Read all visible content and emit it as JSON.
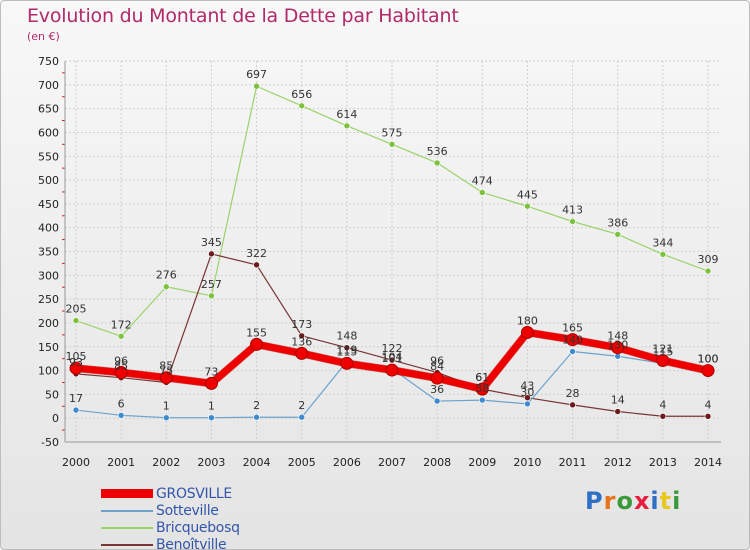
{
  "header": {
    "title": "Evolution du Montant de la Dette par Habitant",
    "subtitle": "(en €)"
  },
  "logo": {
    "text": "Proxiti",
    "letter_colors": [
      "#2f6fc4",
      "#e8731c",
      "#3a9a3a",
      "#e81c3c",
      "#2f6fc4",
      "#e8c81c",
      "#3a9a3a"
    ]
  },
  "chart_data": {
    "type": "line",
    "title": "Evolution du Montant de la Dette par Habitant",
    "subtitle": "(en €)",
    "xlabel": "",
    "ylabel": "",
    "x": [
      "2000",
      "2001",
      "2002",
      "2003",
      "2004",
      "2005",
      "2006",
      "2007",
      "2008",
      "2009",
      "2010",
      "2011",
      "2012",
      "2013",
      "2014"
    ],
    "ylim": [
      -50,
      750
    ],
    "yticks": [
      "-50",
      "0",
      "50",
      "100",
      "150",
      "200",
      "250",
      "300",
      "350",
      "400",
      "450",
      "500",
      "550",
      "600",
      "650",
      "700",
      "750"
    ],
    "grid": true,
    "legend_position": "bottom-left",
    "series": [
      {
        "name": "Bricquebosq",
        "color": "#99d36a",
        "marker": "#7cc23d",
        "width": 1.2,
        "values": [
          205,
          172,
          276,
          257,
          697,
          656,
          614,
          575,
          536,
          474,
          445,
          413,
          386,
          344,
          309
        ],
        "labels": [
          "205",
          "172",
          "276",
          "257",
          "697",
          "656",
          "614",
          "575",
          "536",
          "474",
          "445",
          "413",
          "386",
          "344",
          "309"
        ]
      },
      {
        "name": "Benoîtville",
        "color": "#7a3535",
        "marker": "#6a1a1a",
        "width": 1.2,
        "values": [
          93,
          85,
          75,
          345,
          322,
          173,
          148,
          122,
          96,
          61,
          43,
          28,
          14,
          4,
          4
        ],
        "labels": [
          "93",
          "85",
          "75",
          "345",
          "322",
          "173",
          "148",
          "122",
          "96",
          "61",
          "43",
          "28",
          "14",
          "4",
          "4"
        ]
      },
      {
        "name": "Sotteville",
        "color": "#6ba3cf",
        "marker": "#3d8ad0",
        "width": 1.2,
        "values": [
          17,
          6,
          1,
          1,
          2,
          2,
          119,
          104,
          36,
          38,
          30,
          140,
          130,
          115,
          100
        ],
        "labels": [
          "17",
          "6",
          "1",
          "1",
          "2",
          "2",
          "119",
          "104",
          "36",
          "38",
          "30",
          "140",
          "130",
          "115",
          "100"
        ]
      },
      {
        "name": "GROSVILLE",
        "color": "#ee0000",
        "marker": "#ee0000",
        "width": 7,
        "values": [
          105,
          96,
          85,
          73,
          155,
          136,
          115,
          101,
          84,
          61,
          180,
          165,
          148,
          121,
          100
        ],
        "labels": [
          "105",
          "96",
          "85",
          "73",
          "155",
          "136",
          "115",
          "101",
          "84",
          "61",
          "180",
          "165",
          "148",
          "121",
          "100"
        ]
      }
    ],
    "legend": [
      "GROSVILLE",
      "Sotteville",
      "Bricquebosq",
      "Benoîtville"
    ]
  }
}
